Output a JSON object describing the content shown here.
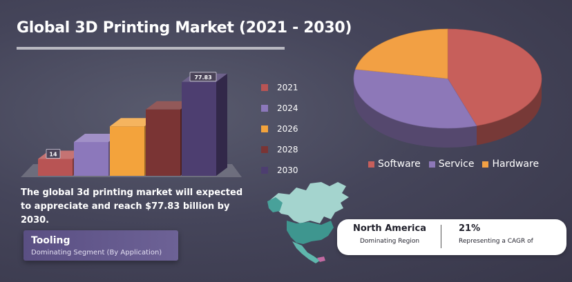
{
  "title": "Global 3D Printing Market (2021 - 2030)",
  "colors": {
    "y2021": "#b85454",
    "y2024": "#8c78bb",
    "y2026": "#f3a33c",
    "y2028": "#7a3434",
    "y2030": "#4d3e70",
    "software": "#c75f5b",
    "service": "#8d78b8",
    "hardware": "#f2a044",
    "map_main": "#9fd2cc",
    "map_dark": "#3e968f"
  },
  "chart_data": [
    {
      "type": "bar",
      "categories": [
        "2021",
        "2024",
        "2026",
        "2028",
        "2030"
      ],
      "values": [
        14,
        28,
        41,
        55,
        77.83
      ],
      "data_labels": [
        "14",
        "",
        "",
        "",
        "77.83"
      ],
      "series_colors": [
        "#b85454",
        "#8c78bb",
        "#f3a33c",
        "#7a3434",
        "#4d3e70"
      ],
      "ylim": [
        0,
        80
      ],
      "legend": "right",
      "grid": false
    },
    {
      "type": "pie",
      "labels": [
        "Software",
        "Service",
        "Hardware"
      ],
      "values": [
        45,
        33,
        22
      ],
      "colors": [
        "#c75f5b",
        "#8d78b8",
        "#f2a044"
      ],
      "legend": "bottom"
    }
  ],
  "legend_years": [
    "2021",
    "2024",
    "2026",
    "2028",
    "2030"
  ],
  "description": "The global 3d printing market will expected to appreciate and reach $77.83 billion by 2030.",
  "segment": {
    "title": "Tooling",
    "subtitle": "Dominating Segment (By Application)"
  },
  "pie_legend": [
    "Software",
    "Service",
    "Hardware"
  ],
  "region": {
    "name": "North America",
    "subtitle": "Dominating Region",
    "cagr": "21%",
    "cagr_subtitle": "Representing a CAGR of"
  }
}
